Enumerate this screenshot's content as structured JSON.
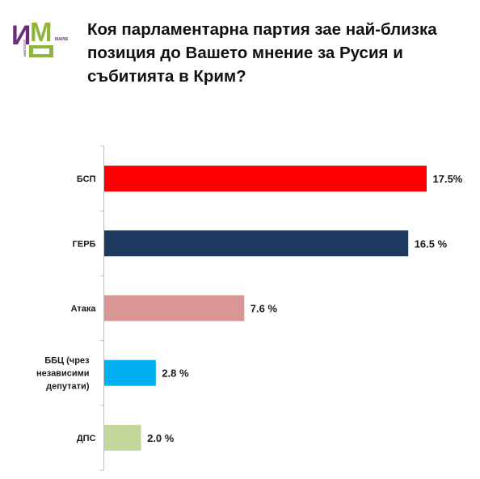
{
  "header": {
    "title": "Коя парламентарна партия зае най-близка позиция до Вашето мнение за Русия и събитията в Крим?"
  },
  "logo": {
    "big_letters": "ИМ",
    "small_text_right": "МАРКЕТ",
    "small_text_left": "ИНСТИТУТ",
    "colors": {
      "purple": "#6b2f7a",
      "green": "#8fb53a"
    }
  },
  "chart_data": {
    "type": "bar",
    "orientation": "horizontal",
    "title": "",
    "xlabel": "",
    "ylabel": "",
    "xlim": [
      0,
      17.5
    ],
    "grid": false,
    "legend": "none",
    "categories": [
      "БСП",
      "ГЕРБ",
      "Атака",
      "ББЦ (чрез независими депутати)",
      "ДПС"
    ],
    "category_lines": [
      [
        "БСП"
      ],
      [
        "ГЕРБ"
      ],
      [
        "Атака"
      ],
      [
        "ББЦ (чрез",
        "независими",
        "депутати)"
      ],
      [
        "ДПС"
      ]
    ],
    "values": [
      17.5,
      16.5,
      7.6,
      2.8,
      2.0
    ],
    "value_labels": [
      "17.5%",
      "16.5 %",
      "7.6 %",
      "2.8 %",
      "2.0 %"
    ],
    "colors": [
      "#ff0000",
      "#1f3a60",
      "#d99694",
      "#00b0f0",
      "#c4d79b"
    ]
  }
}
